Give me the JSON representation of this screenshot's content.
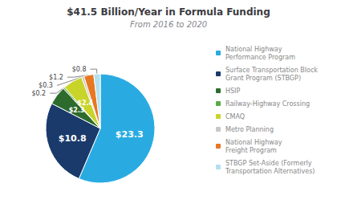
{
  "chart_data": {
    "type": "pie",
    "title": "$41.5 Billion/Year in Formula Funding",
    "subtitle": "From 2016 to 2020",
    "categories": [
      "National Highway\nPerformance Program",
      "Surface Transportation Block\nGrant Program (STBGP)",
      "HSIP",
      "Railway-Highway Crossing",
      "CMAQ",
      "Metro Planning",
      "National Highway\nFreight Program",
      "STBGP Set-Aside (Formerly\nTransportation Alternatives)"
    ],
    "values": [
      23.3,
      10.8,
      2.3,
      0.2,
      2.4,
      0.3,
      1.2,
      0.8
    ],
    "value_labels": [
      "$23.3",
      "$10.8",
      "$2.3",
      "$0.2",
      "$2.4",
      "$0.3",
      "$1.2",
      "$0.8"
    ],
    "colors": [
      "#29abe2",
      "#1a3a6b",
      "#2d6b2d",
      "#5aaa46",
      "#c8d42a",
      "#c8c8c8",
      "#e87722",
      "#b3e0f0"
    ],
    "data_labels": true,
    "legend": "right"
  }
}
